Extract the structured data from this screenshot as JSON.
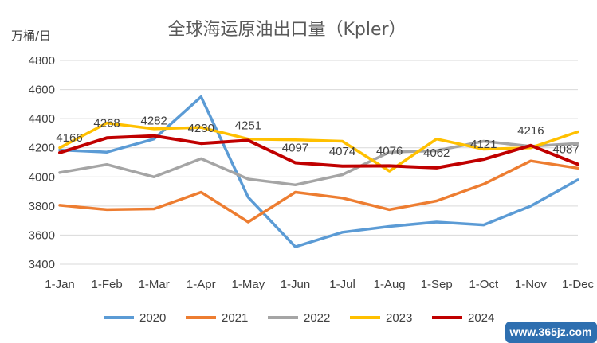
{
  "chart_data": {
    "type": "line",
    "title": "全球海运原油出口量（Kpler）",
    "ylabel": "万桶/日",
    "xlabel": "",
    "categories": [
      "1-Jan",
      "1-Feb",
      "1-Mar",
      "1-Apr",
      "1-May",
      "1-Jun",
      "1-Jul",
      "1-Aug",
      "1-Sep",
      "1-Oct",
      "1-Nov",
      "1-Dec"
    ],
    "ylim": [
      3400,
      4800
    ],
    "yticks": [
      3400,
      3600,
      3800,
      4000,
      4200,
      4400,
      4600,
      4800
    ],
    "grid": true,
    "legend": "bottom",
    "series": [
      {
        "name": "2020",
        "color": "#5B9BD5",
        "values": [
          4185,
          4170,
          4260,
          4550,
          3860,
          3520,
          3620,
          3660,
          3690,
          3670,
          3800,
          3980
        ]
      },
      {
        "name": "2021",
        "color": "#ED7D31",
        "values": [
          3805,
          3775,
          3780,
          3895,
          3690,
          3895,
          3855,
          3775,
          3835,
          3950,
          4110,
          4060
        ]
      },
      {
        "name": "2022",
        "color": "#A5A5A5",
        "values": [
          4030,
          4085,
          4000,
          4125,
          3985,
          3945,
          4015,
          4170,
          4180,
          4245,
          4210,
          4230
        ]
      },
      {
        "name": "2023",
        "color": "#FFC000",
        "values": [
          4200,
          4370,
          4330,
          4340,
          4260,
          4255,
          4245,
          4040,
          4260,
          4190,
          4200,
          4310
        ]
      },
      {
        "name": "2024",
        "color": "#C00000",
        "values": [
          4166,
          4268,
          4282,
          4230,
          4251,
          4097,
          4074,
          4076,
          4062,
          4121,
          4216,
          4087
        ]
      }
    ],
    "data_labels": {
      "series": "2024",
      "labels": [
        "4166",
        "4268",
        "4282",
        "4230",
        "4251",
        "4097",
        "4074",
        "4076",
        "4062",
        "4121",
        "4216",
        "4087"
      ]
    }
  },
  "watermark": "www.365jz.com"
}
